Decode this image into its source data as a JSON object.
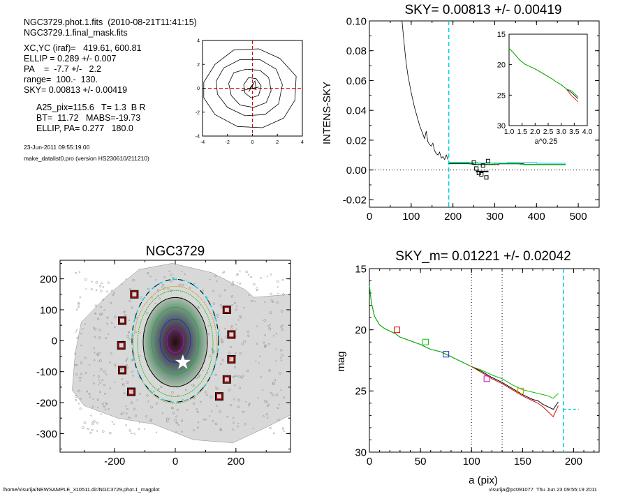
{
  "header": {
    "line1": "NGC3729.phot.1.fits  (2010-08-21T11:41:15)",
    "line2": "NGC3729.1.final_mask.fits",
    "line3": "XC,YC (iraf)=   419.61, 600.81",
    "line4": "ELLIP = 0.289 +/- 0.007",
    "line5": "PA    =  -7.7 +/-   2.2",
    "line6": "range=  100.-  130.",
    "line7": "SKY= 0.00813 +/- 0.00419",
    "line8": "A25_pix=115.6   T= 1.3  B R",
    "line9": "BT=  11.72   MABS=-19.73",
    "line10": "ELLIP, PA= 0.277   180.0",
    "date": "23-Jun-2011 09:55:19.00",
    "program": "make_datalist0.pro (version HS230610/211210)"
  },
  "footer": {
    "left": "/home/visurija/NEWSAMPLE_310511.dir/NGC3729.phot.1_magplot",
    "right": "visurija@pc091077  Thu Jun 23 09:55:19 2011"
  },
  "colors": {
    "red": "#e00000",
    "green": "#00c000",
    "blue": "#2020d0",
    "cyan": "#00d0e0",
    "magenta": "#d000d0",
    "orange": "#d09000",
    "black": "#000000",
    "darkred": "#8b0000"
  },
  "chart_data": [
    {
      "id": "center_contours",
      "type": "contour",
      "xlim": [
        -4,
        4
      ],
      "ylim": [
        -4,
        4
      ],
      "xticks": [
        "-4",
        "-2",
        "0",
        "2",
        "4"
      ],
      "yticks": [
        "-4",
        "-2",
        "0",
        "2",
        "4"
      ],
      "contours": [
        [
          [
            -3.9,
            0.5
          ],
          [
            -3.0,
            2.0
          ],
          [
            -1.5,
            3.2
          ],
          [
            0.5,
            3.3
          ],
          [
            2.2,
            2.5
          ],
          [
            3.5,
            1.0
          ],
          [
            3.4,
            -1.0
          ],
          [
            2.5,
            -2.5
          ],
          [
            0.8,
            -3.3
          ],
          [
            -1.2,
            -3.2
          ],
          [
            -3.0,
            -2.2
          ],
          [
            -3.9,
            -0.8
          ],
          [
            -3.9,
            0.5
          ]
        ],
        [
          [
            -2.9,
            0.6
          ],
          [
            -2.3,
            1.7
          ],
          [
            -1.0,
            2.4
          ],
          [
            0.6,
            2.4
          ],
          [
            1.9,
            1.6
          ],
          [
            2.4,
            0.3
          ],
          [
            2.1,
            -1.3
          ],
          [
            1.0,
            -2.2
          ],
          [
            -0.6,
            -2.3
          ],
          [
            -2.0,
            -1.6
          ],
          [
            -2.8,
            -0.5
          ],
          [
            -2.9,
            0.6
          ]
        ],
        [
          [
            -1.9,
            0.4
          ],
          [
            -1.5,
            1.3
          ],
          [
            -0.5,
            1.6
          ],
          [
            0.6,
            1.5
          ],
          [
            1.3,
            0.9
          ],
          [
            1.5,
            -0.2
          ],
          [
            1.1,
            -1.2
          ],
          [
            0.1,
            -1.6
          ],
          [
            -1.0,
            -1.4
          ],
          [
            -1.7,
            -0.6
          ],
          [
            -1.9,
            0.4
          ]
        ],
        [
          [
            -0.7,
            0.3
          ],
          [
            -0.3,
            0.9
          ],
          [
            0.3,
            0.8
          ],
          [
            0.7,
            0.2
          ],
          [
            0.5,
            -0.6
          ],
          [
            -0.1,
            -0.8
          ],
          [
            -0.6,
            -0.4
          ],
          [
            -0.7,
            0.3
          ]
        ],
        [
          [
            -0.2,
            0.0
          ],
          [
            0.2,
            0.6
          ],
          [
            0.3,
            -0.1
          ],
          [
            -0.2,
            0.0
          ]
        ],
        [
          [
            -0.9,
            -0.2
          ],
          [
            0.5,
            0.1
          ]
        ],
        [
          [
            -0.3,
            -0.3
          ],
          [
            0.1,
            0.4
          ]
        ]
      ]
    },
    {
      "id": "sky_profile",
      "type": "line",
      "title": "SKY= 0.00813 +/- 0.00419",
      "ylabel": "INTENS-SKY",
      "xlim": [
        0,
        550
      ],
      "ylim": [
        -0.025,
        0.1
      ],
      "xticks": [
        "0",
        "100",
        "200",
        "300",
        "400",
        "500"
      ],
      "yticks": [
        "-0.02",
        "0.00",
        "0.02",
        "0.04",
        "0.06",
        "0.08",
        "0.10"
      ],
      "sky_radius": 190,
      "profile_x": [
        78,
        80,
        82,
        85,
        88,
        92,
        96,
        100,
        104,
        108,
        112,
        116,
        120,
        124,
        128,
        132,
        136,
        140,
        144,
        148,
        152,
        156,
        160,
        164,
        168,
        172,
        176,
        180,
        184,
        188
      ],
      "profile_y": [
        0.1,
        0.094,
        0.088,
        0.08,
        0.072,
        0.064,
        0.058,
        0.052,
        0.047,
        0.042,
        0.038,
        0.034,
        0.03,
        0.027,
        0.024,
        0.021,
        0.026,
        0.019,
        0.017,
        0.016,
        0.018,
        0.013,
        0.011,
        0.01,
        0.012,
        0.008,
        0.009,
        0.007,
        0.01,
        0.007
      ],
      "sky_levels": [
        {
          "name": "black",
          "x": [
            190,
            250,
            250,
            310,
            310,
            370,
            370,
            470
          ],
          "y": [
            0.0042,
            0.0042,
            0.0036,
            0.0036,
            0.0041,
            0.0041,
            0.0036,
            0.0036
          ]
        },
        {
          "name": "green",
          "x": [
            190,
            240,
            240,
            300,
            300,
            360,
            360,
            470
          ],
          "y": [
            0.0046,
            0.0046,
            0.004,
            0.004,
            0.0044,
            0.0044,
            0.0038,
            0.0038
          ]
        },
        {
          "name": "cyan",
          "x": [
            190,
            260,
            260,
            330,
            330,
            400,
            400,
            470
          ],
          "y": [
            0.0052,
            0.0052,
            0.0047,
            0.0047,
            0.0051,
            0.0051,
            0.0045,
            0.0045
          ]
        }
      ],
      "sky_points": {
        "x": [
          250,
          256,
          262,
          268,
          272,
          280,
          284
        ],
        "y": [
          0.005,
          0.001,
          -0.002,
          -0.003,
          0.003,
          -0.005,
          0.006
        ]
      },
      "sky_mean_segment": {
        "x": [
          255,
          285
        ],
        "y": [
          -0.001,
          -0.001
        ]
      },
      "inset": {
        "xlabel": "a^0.25",
        "xlim": [
          1.0,
          4.0
        ],
        "ylim": [
          15,
          30
        ],
        "xticks": [
          "1.0",
          "1.5",
          "2.0",
          "2.5",
          "3.0",
          "3.5",
          "4.0"
        ],
        "yticks": [
          "15",
          "20",
          "25",
          "30"
        ],
        "x": [
          1.0,
          1.2,
          1.4,
          1.6,
          1.8,
          2.0,
          2.2,
          2.4,
          2.6,
          2.8,
          3.0,
          3.2,
          3.4,
          3.55,
          3.65
        ],
        "y": [
          17.3,
          18.2,
          19.2,
          19.9,
          20.3,
          20.7,
          21.2,
          21.7,
          22.2,
          22.8,
          23.3,
          24.0,
          24.6,
          25.2,
          25.6
        ]
      }
    },
    {
      "id": "galaxy_image",
      "type": "image",
      "title": "NGC3729",
      "xlim": [
        -380,
        380
      ],
      "ylim": [
        -360,
        260
      ],
      "xticks": [
        "-200",
        "0",
        "200"
      ],
      "yticks": [
        "200",
        "100",
        "0",
        "-100",
        "-200",
        "-300"
      ],
      "markers": [
        [
          -135,
          150
        ],
        [
          -175,
          65
        ],
        [
          -178,
          -15
        ],
        [
          -175,
          -95
        ],
        [
          -145,
          -165
        ],
        [
          170,
          100
        ],
        [
          185,
          20
        ],
        [
          185,
          -60
        ],
        [
          170,
          -125
        ],
        [
          145,
          -180
        ]
      ],
      "star": [
        25,
        -70
      ]
    },
    {
      "id": "mag_profile",
      "type": "line",
      "title": "SKY_m=  0.01221 +/- 0.02042",
      "xlabel": "a (pix)",
      "ylabel": "mag",
      "xlim": [
        0,
        225
      ],
      "ylim": [
        15,
        30
      ],
      "xticks": [
        "0",
        "50",
        "100",
        "150",
        "200"
      ],
      "yticks": [
        "15",
        "20",
        "25",
        "30"
      ],
      "vlines": [
        100,
        130
      ],
      "sky_radius": 190,
      "series": [
        {
          "name": "black",
          "x": [
            0,
            2,
            5,
            10,
            15,
            20,
            25,
            30,
            40,
            50,
            60,
            70,
            80,
            90,
            100,
            110,
            120,
            130,
            140,
            150,
            155,
            160,
            165,
            170,
            175,
            180,
            185
          ],
          "y": [
            16.4,
            17.8,
            18.9,
            19.6,
            19.9,
            20.1,
            20.3,
            20.6,
            20.9,
            21.2,
            21.6,
            21.8,
            22.2,
            22.6,
            23.0,
            23.4,
            23.9,
            24.3,
            24.8,
            25.3,
            25.5,
            25.7,
            25.8,
            26.1,
            26.3,
            26.5,
            25.9
          ]
        },
        {
          "name": "green",
          "x": [
            0,
            2,
            5,
            10,
            15,
            20,
            25,
            30,
            40,
            50,
            60,
            70,
            80,
            90,
            100,
            110,
            120,
            130,
            140,
            150,
            155,
            160,
            165,
            170,
            175,
            180,
            185
          ],
          "y": [
            16.4,
            17.8,
            18.9,
            19.6,
            19.9,
            20.1,
            20.3,
            20.6,
            20.9,
            21.2,
            21.6,
            21.8,
            22.2,
            22.6,
            23.0,
            23.3,
            23.7,
            24.0,
            24.5,
            24.9,
            25.0,
            25.1,
            25.2,
            25.3,
            25.4,
            25.6,
            25.2
          ]
        },
        {
          "name": "red",
          "x": [
            100,
            110,
            120,
            130,
            140,
            150,
            155,
            160,
            165,
            170,
            175,
            180,
            185
          ],
          "y": [
            23.0,
            23.5,
            24.0,
            24.4,
            24.9,
            25.4,
            25.6,
            25.8,
            26.0,
            26.3,
            26.7,
            27.1,
            26.2
          ]
        }
      ],
      "squares": [
        {
          "x": 27,
          "y": 20.0,
          "color": "red"
        },
        {
          "x": 55,
          "y": 21.0,
          "color": "green"
        },
        {
          "x": 75,
          "y": 22.0,
          "color": "blue"
        },
        {
          "x": 115,
          "y": 24.0,
          "color": "magenta"
        },
        {
          "x": 148,
          "y": 25.0,
          "color": "orange"
        }
      ],
      "sky_marker": {
        "x": [
          190,
          205
        ],
        "y": [
          26.5,
          26.5
        ]
      }
    }
  ]
}
